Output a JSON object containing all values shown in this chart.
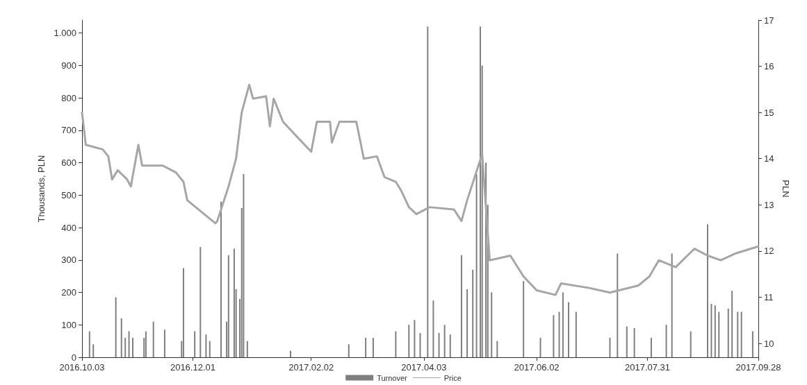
{
  "chart_data": {
    "type": "bar",
    "ylabel": "Thousands, PLN",
    "y2label": "PLN",
    "xlim": [
      "2016-10-03",
      "2017-09-28"
    ],
    "xticks": [
      {
        "value": "2016-10-03",
        "label": "2016.10.03"
      },
      {
        "value": "2016-12-01",
        "label": "2016.12.01"
      },
      {
        "value": "2017-02-02",
        "label": "2017.02.02"
      },
      {
        "value": "2017-04-03",
        "label": "2017.04.03"
      },
      {
        "value": "2017-06-02",
        "label": "2017.06.02"
      },
      {
        "value": "2017-07-31",
        "label": "2017.07.31"
      },
      {
        "value": "2017-09-28",
        "label": "2017.09.28"
      }
    ],
    "ylim": [
      0,
      1040
    ],
    "yticks": [
      0,
      100,
      200,
      300,
      400,
      500,
      600,
      700,
      800,
      900,
      {
        "value": 1000,
        "label": "1.000"
      }
    ],
    "y2lim": [
      9.7,
      17
    ],
    "y2ticks": [
      10,
      11,
      12,
      13,
      14,
      15,
      16,
      17
    ],
    "grid": false,
    "legend": "bottom",
    "series": [
      {
        "name": "Turnover",
        "color": "#7f7f7f",
        "x": [
          "2016-10-07",
          "2016-10-09",
          "2016-10-21",
          "2016-10-24",
          "2016-10-26",
          "2016-10-28",
          "2016-10-30",
          "2016-11-05",
          "2016-11-06",
          "2016-11-10",
          "2016-11-16",
          "2016-11-25",
          "2016-11-26",
          "2016-12-02",
          "2016-12-05",
          "2016-12-08",
          "2016-12-10",
          "2016-12-16",
          "2016-12-19",
          "2016-12-20",
          "2016-12-23",
          "2016-12-24",
          "2016-12-26",
          "2016-12-27",
          "2016-12-28",
          "2016-12-30",
          "2017-01-22",
          "2017-02-22",
          "2017-03-03",
          "2017-03-07",
          "2017-03-19",
          "2017-03-26",
          "2017-03-29",
          "2017-04-01",
          "2017-04-05",
          "2017-04-08",
          "2017-04-11",
          "2017-04-14",
          "2017-04-17",
          "2017-04-23",
          "2017-04-26",
          "2017-04-29",
          "2017-05-01",
          "2017-05-03",
          "2017-05-04",
          "2017-05-06",
          "2017-05-07",
          "2017-05-09",
          "2017-05-12",
          "2017-05-26",
          "2017-06-04",
          "2017-06-11",
          "2017-06-14",
          "2017-06-16",
          "2017-06-19",
          "2017-06-23",
          "2017-07-11",
          "2017-07-15",
          "2017-07-20",
          "2017-07-24",
          "2017-08-02",
          "2017-08-10",
          "2017-08-13",
          "2017-08-23",
          "2017-09-01",
          "2017-09-03",
          "2017-09-05",
          "2017-09-07",
          "2017-09-12",
          "2017-09-14",
          "2017-09-17",
          "2017-09-19",
          "2017-09-25"
        ],
        "values": [
          80,
          40,
          185,
          120,
          60,
          80,
          60,
          60,
          80,
          110,
          85,
          50,
          275,
          80,
          340,
          70,
          50,
          480,
          110,
          315,
          335,
          210,
          180,
          460,
          565,
          50,
          20,
          40,
          60,
          60,
          80,
          100,
          115,
          75,
          1020,
          175,
          75,
          100,
          70,
          315,
          210,
          270,
          565,
          1020,
          900,
          600,
          470,
          200,
          50,
          235,
          60,
          130,
          140,
          200,
          170,
          140,
          60,
          320,
          95,
          90,
          60,
          100,
          320,
          80,
          410,
          165,
          160,
          140,
          150,
          205,
          140,
          140,
          80
        ]
      },
      {
        "name": "Price",
        "type": "line",
        "axis": "y2",
        "color": "#a6a6a6",
        "marker": "none",
        "x": [
          "2016-10-03",
          "2016-10-05",
          "2016-10-14",
          "2016-10-17",
          "2016-10-19",
          "2016-10-22",
          "2016-10-27",
          "2016-10-29",
          "2016-11-02",
          "2016-11-04",
          "2016-11-15",
          "2016-11-22",
          "2016-11-26",
          "2016-11-28",
          "2016-12-07",
          "2016-12-13",
          "2016-12-14",
          "2016-12-20",
          "2016-12-24",
          "2016-12-27",
          "2016-12-31",
          "2017-01-02",
          "2017-01-09",
          "2017-01-11",
          "2017-01-13",
          "2017-01-18",
          "2017-01-26",
          "2017-02-02",
          "2017-02-05",
          "2017-02-12",
          "2017-02-13",
          "2017-02-17",
          "2017-02-26",
          "2017-03-02",
          "2017-03-09",
          "2017-03-13",
          "2017-03-19",
          "2017-03-22",
          "2017-03-26",
          "2017-03-30",
          "2017-04-06",
          "2017-04-19",
          "2017-04-23",
          "2017-04-26",
          "2017-05-02",
          "2017-05-04",
          "2017-05-08",
          "2017-05-19",
          "2017-05-26",
          "2017-06-02",
          "2017-06-12",
          "2017-06-15",
          "2017-06-30",
          "2017-07-11",
          "2017-07-26",
          "2017-08-01",
          "2017-08-06",
          "2017-08-15",
          "2017-08-25",
          "2017-09-01",
          "2017-09-08",
          "2017-09-16",
          "2017-09-28"
        ],
        "values": [
          15.0,
          14.3,
          14.2,
          14.05,
          13.55,
          13.75,
          13.55,
          13.4,
          14.3,
          13.85,
          13.85,
          13.7,
          13.5,
          13.1,
          12.8,
          12.6,
          12.65,
          13.4,
          14.0,
          15.0,
          15.6,
          15.3,
          15.35,
          14.7,
          15.3,
          14.8,
          14.45,
          14.15,
          14.8,
          14.8,
          14.35,
          14.8,
          14.8,
          14.0,
          14.05,
          13.6,
          13.5,
          13.3,
          12.95,
          12.8,
          12.95,
          12.9,
          12.65,
          13.1,
          13.85,
          14.1,
          11.8,
          11.9,
          11.45,
          11.15,
          11.05,
          11.3,
          11.2,
          11.1,
          11.25,
          11.45,
          11.8,
          11.65,
          12.05,
          11.9,
          11.8,
          11.95,
          12.1
        ]
      }
    ]
  }
}
